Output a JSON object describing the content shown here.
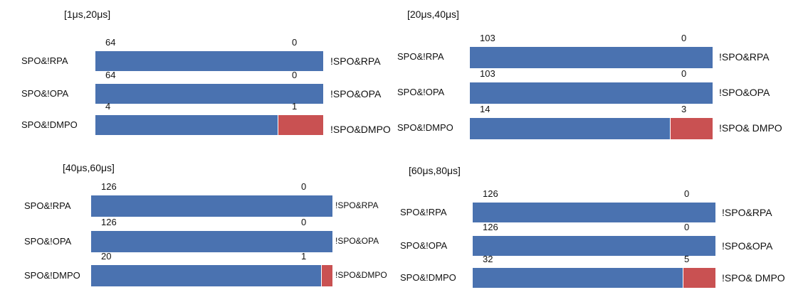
{
  "colors": {
    "blue": "#4a72b0",
    "red": "#c95152"
  },
  "chart_data": [
    {
      "type": "bar",
      "orientation": "horizontal-stacked-proportion",
      "title": "[1μs,20μs]",
      "rows": [
        {
          "left_label": "SPO&!RPA",
          "right_label": "!SPO&RPA",
          "left_value": 64,
          "right_value": 0
        },
        {
          "left_label": "SPO&!OPA",
          "right_label": "!SPO&OPA",
          "left_value": 64,
          "right_value": 0
        },
        {
          "left_label": "SPO&!DMPO",
          "right_label": "!SPO&DMPO",
          "left_value": 4,
          "right_value": 1
        }
      ]
    },
    {
      "type": "bar",
      "orientation": "horizontal-stacked-proportion",
      "title": "[20μs,40μs]",
      "rows": [
        {
          "left_label": "SPO&!RPA",
          "right_label": "!SPO&RPA",
          "left_value": 103,
          "right_value": 0
        },
        {
          "left_label": "SPO&!OPA",
          "right_label": "!SPO&OPA",
          "left_value": 103,
          "right_value": 0
        },
        {
          "left_label": "SPO&!DMPO",
          "right_label": "!SPO& DMPO",
          "left_value": 14,
          "right_value": 3
        }
      ]
    },
    {
      "type": "bar",
      "orientation": "horizontal-stacked-proportion",
      "title": "[40μs,60μs]",
      "rows": [
        {
          "left_label": "SPO&!RPA",
          "right_label": "!SPO&RPA",
          "left_value": 126,
          "right_value": 0
        },
        {
          "left_label": "SPO&!OPA",
          "right_label": "!SPO&OPA",
          "left_value": 126,
          "right_value": 0
        },
        {
          "left_label": "SPO&!DMPO",
          "right_label": "!SPO&DMPO",
          "left_value": 20,
          "right_value": 1
        }
      ]
    },
    {
      "type": "bar",
      "orientation": "horizontal-stacked-proportion",
      "title": "[60μs,80μs]",
      "rows": [
        {
          "left_label": "SPO&!RPA",
          "right_label": "!SPO&RPA",
          "left_value": 126,
          "right_value": 0
        },
        {
          "left_label": "SPO&!OPA",
          "right_label": "!SPO&OPA",
          "left_value": 126,
          "right_value": 0
        },
        {
          "left_label": "SPO&!DMPO",
          "right_label": "!SPO& DMPO",
          "left_value": 32,
          "right_value": 5
        }
      ]
    }
  ]
}
